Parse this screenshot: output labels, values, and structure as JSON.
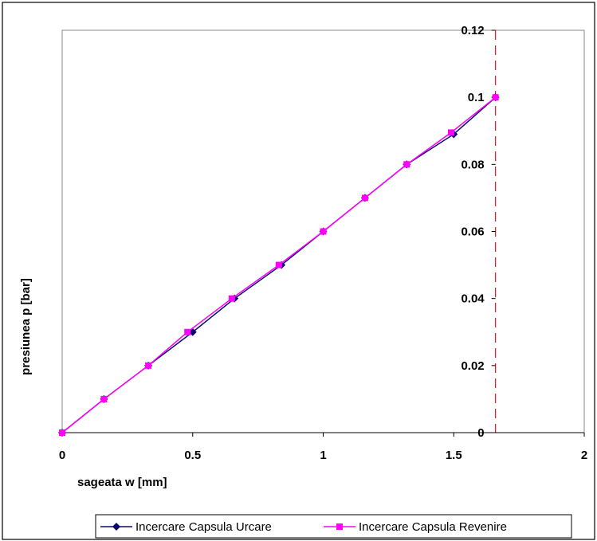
{
  "chart_data": {
    "type": "line",
    "title": "",
    "xlabel": "sageata w [mm]",
    "ylabel": "presiunea p [bar]",
    "xlim": [
      0,
      2
    ],
    "ylim": [
      0,
      0.12
    ],
    "x_ticks": [
      "0",
      "0.5",
      "1",
      "1.5",
      "2"
    ],
    "y_ticks": [
      "0",
      "0.02",
      "0.04",
      "0.06",
      "0.08",
      "0.1",
      "0.12"
    ],
    "x_tick_values": [
      0,
      0.5,
      1,
      1.5,
      2
    ],
    "y_tick_values": [
      0,
      0.02,
      0.04,
      0.06,
      0.08,
      0.1,
      0.12
    ],
    "grid": false,
    "legend_position": "bottom",
    "reference_line": {
      "x": 1.66,
      "color": "#e8202a",
      "style": "dashed"
    },
    "series": [
      {
        "name": "Incercare Capsula Urcare",
        "color": "#0a0a6e",
        "marker": "diamond",
        "x": [
          0,
          0.16,
          0.33,
          0.5,
          0.66,
          0.84,
          1.0,
          1.16,
          1.32,
          1.5,
          1.66
        ],
        "y": [
          0,
          0.01,
          0.02,
          0.03,
          0.04,
          0.05,
          0.06,
          0.07,
          0.08,
          0.089,
          0.1
        ]
      },
      {
        "name": "Incercare Capsula Revenire",
        "color": "#ff00ff",
        "marker": "square",
        "x": [
          0,
          0.16,
          0.33,
          0.48,
          0.65,
          0.83,
          1.0,
          1.16,
          1.32,
          1.49,
          1.66
        ],
        "y": [
          0,
          0.01,
          0.02,
          0.03,
          0.04,
          0.05,
          0.06,
          0.07,
          0.08,
          0.0895,
          0.1
        ]
      }
    ]
  }
}
